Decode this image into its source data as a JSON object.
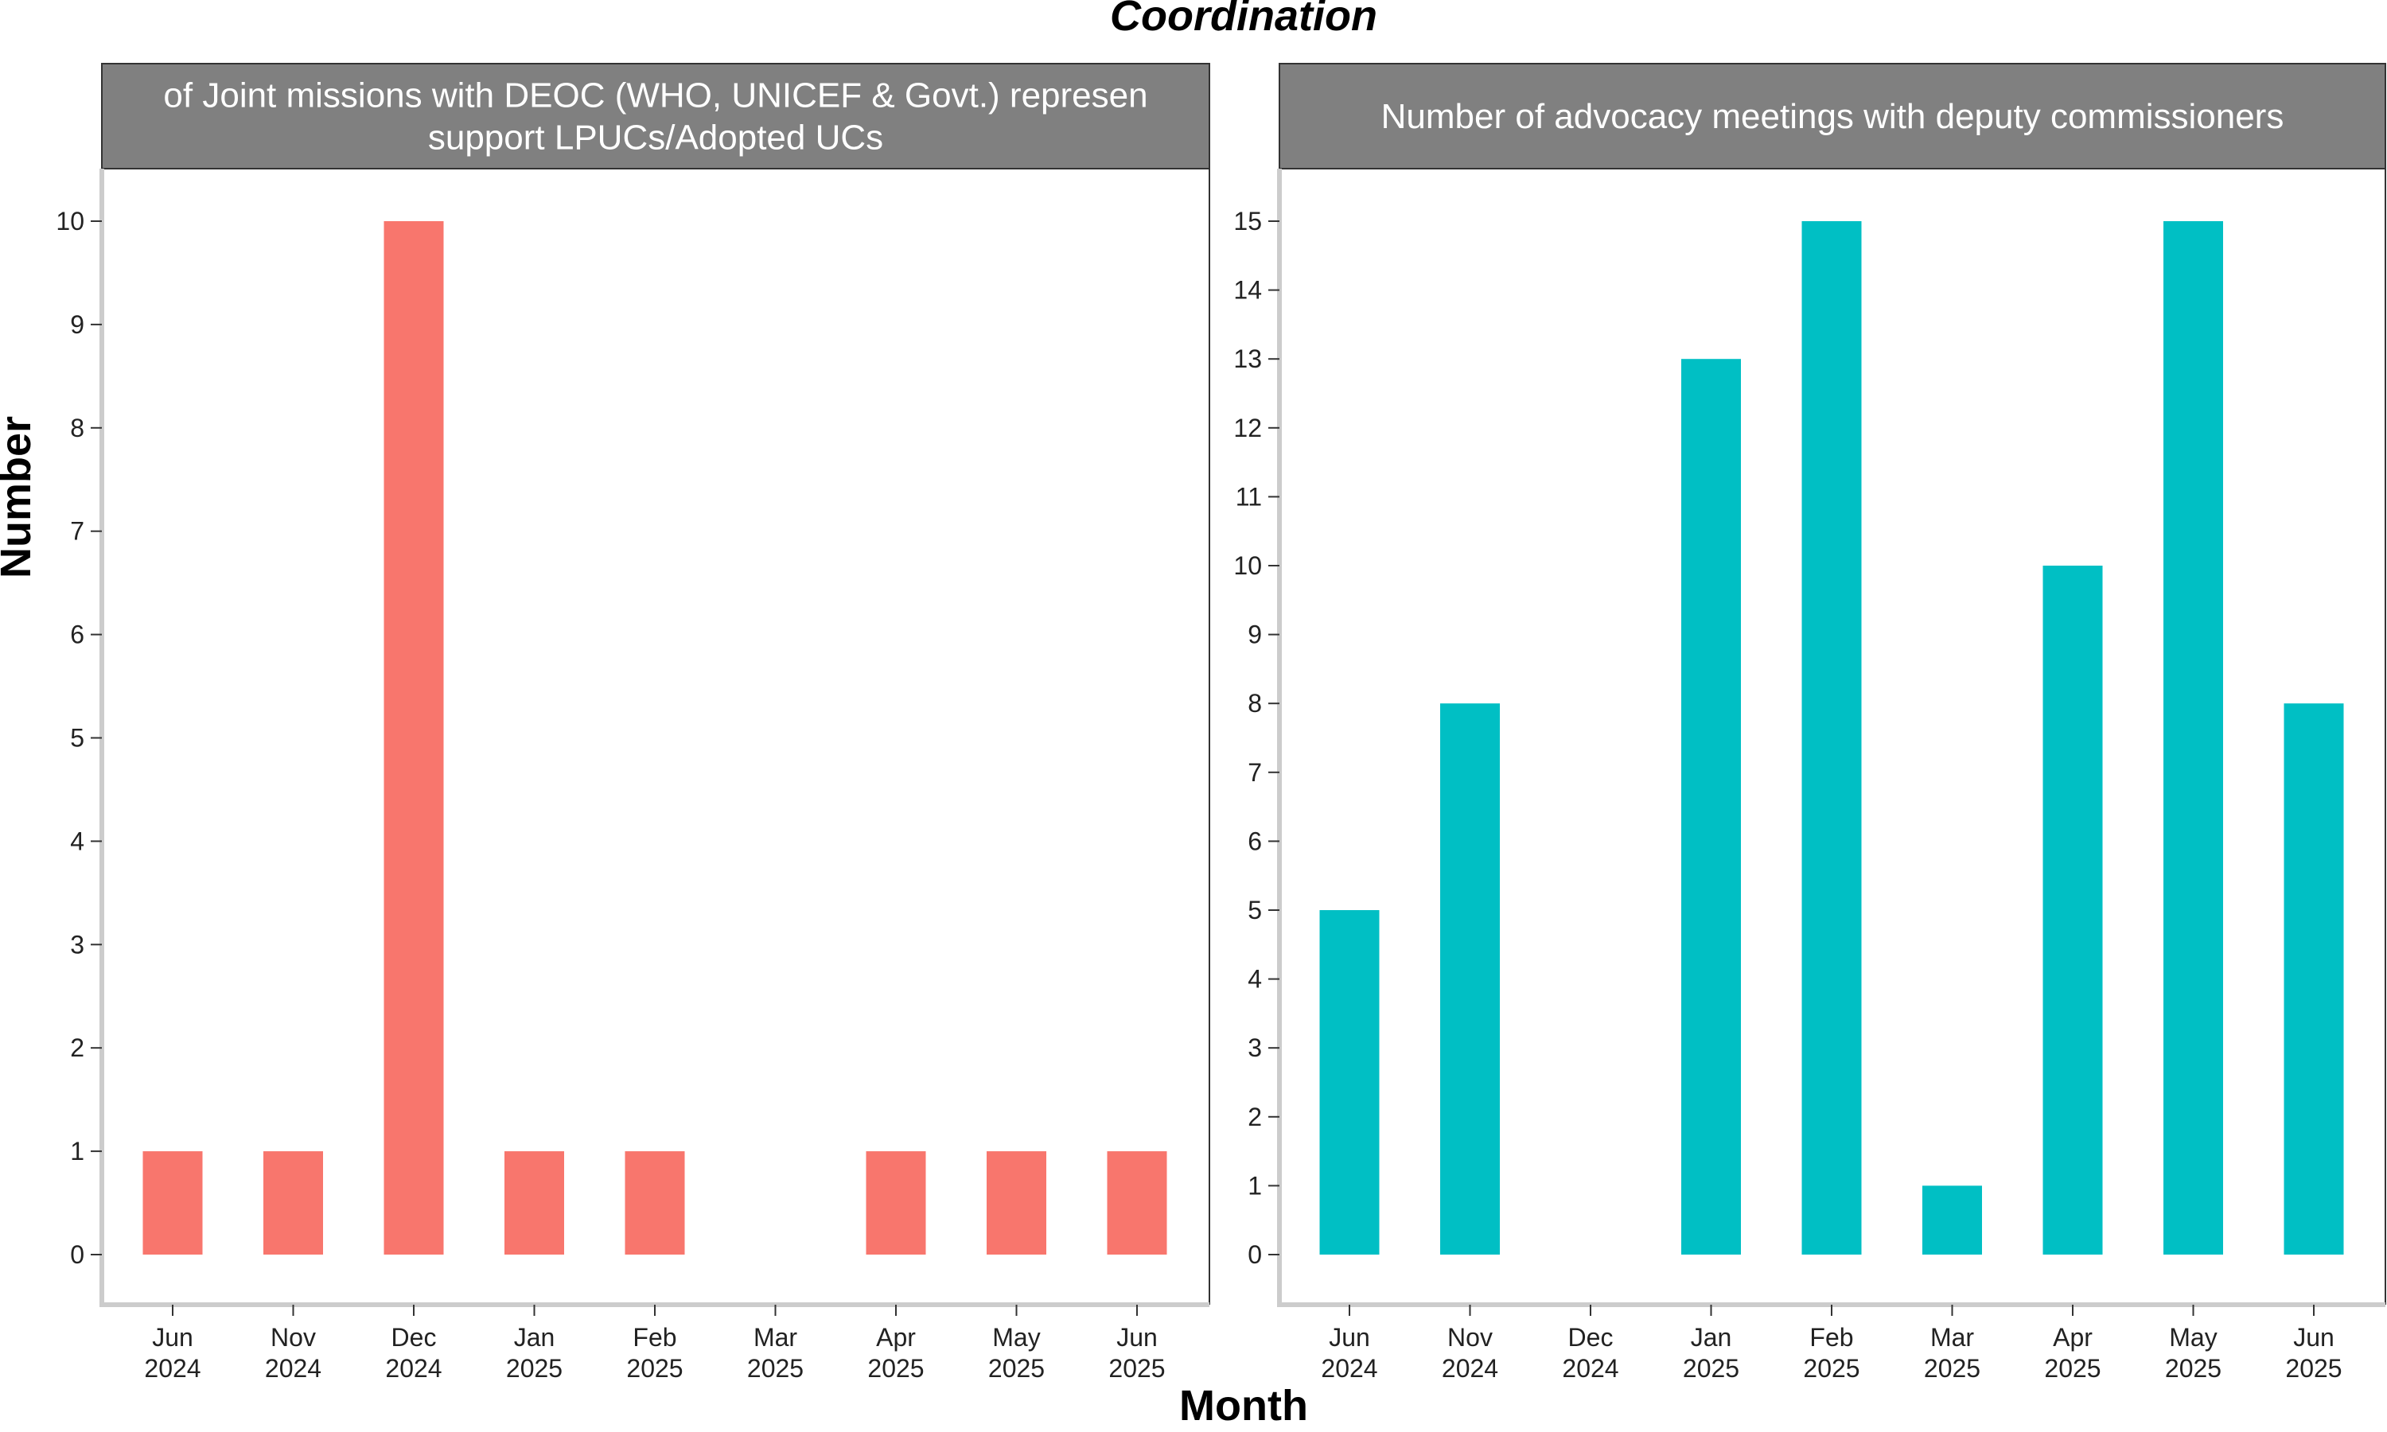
{
  "title": "Coordination",
  "xlabel": "Month",
  "ylabel": "Number",
  "chart_data": [
    {
      "type": "bar",
      "title": "of Joint missions with DEOC (WHO, UNICEF & Govt.) represen\nsupport LPUCs/Adopted UCs",
      "categories": [
        "Jun\n2024",
        "Nov\n2024",
        "Dec\n2024",
        "Jan\n2025",
        "Feb\n2025",
        "Mar\n2025",
        "Apr\n2025",
        "May\n2025",
        "Jun\n2025"
      ],
      "values": [
        1,
        1,
        10,
        1,
        1,
        null,
        1,
        1,
        1
      ],
      "yticks": [
        0,
        1,
        2,
        3,
        4,
        5,
        6,
        7,
        8,
        9,
        10
      ],
      "ylim": [
        0,
        10
      ],
      "color": "#F8766D",
      "grid": false
    },
    {
      "type": "bar",
      "title": "Number of advocacy meetings with deputy commissioners",
      "categories": [
        "Jun\n2024",
        "Nov\n2024",
        "Dec\n2024",
        "Jan\n2025",
        "Feb\n2025",
        "Mar\n2025",
        "Apr\n2025",
        "May\n2025",
        "Jun\n2025"
      ],
      "values": [
        5,
        8,
        null,
        13,
        15,
        1,
        10,
        15,
        8
      ],
      "yticks": [
        0,
        1,
        2,
        3,
        4,
        5,
        6,
        7,
        8,
        9,
        10,
        11,
        12,
        13,
        14,
        15
      ],
      "ylim": [
        0,
        15
      ],
      "color": "#00BFC4",
      "grid": false
    }
  ]
}
